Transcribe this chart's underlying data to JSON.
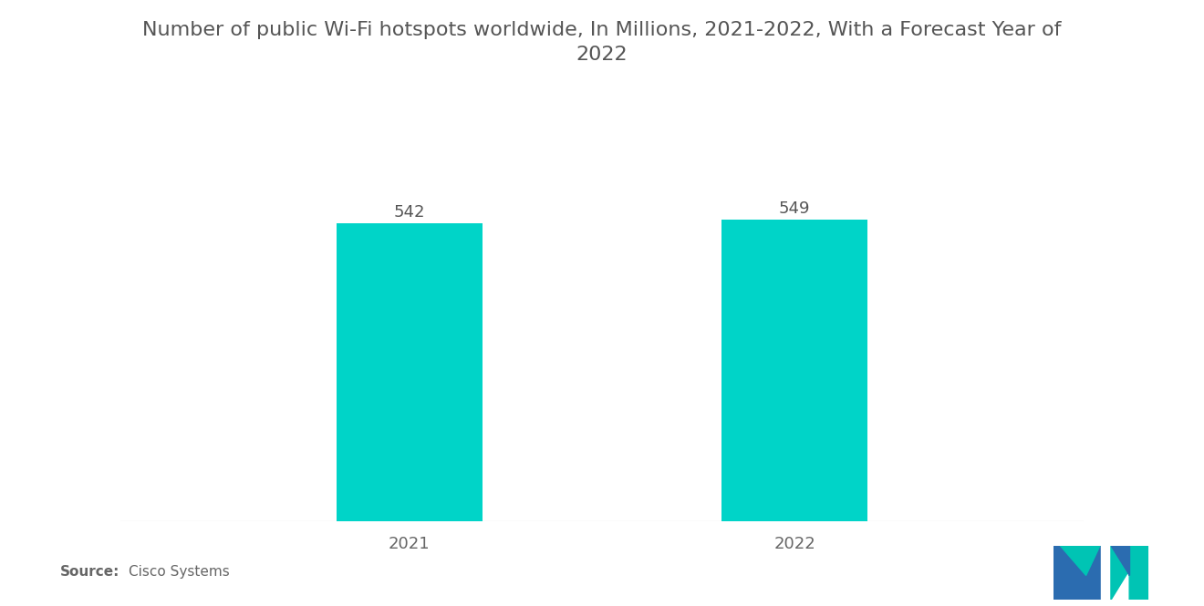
{
  "title_line1": "Number of public Wi-Fi hotspots worldwide, In Millions, 2021-2022, With a Forecast Year of",
  "title_line2": "2022",
  "categories": [
    "2021",
    "2022"
  ],
  "values": [
    542,
    549
  ],
  "bar_color": "#00D4C8",
  "bar_width": 0.38,
  "value_color": "#555555",
  "label_color": "#666666",
  "title_color": "#555555",
  "background_color": "#ffffff",
  "source_bold": "Source:",
  "source_normal": "  Cisco Systems",
  "value_fontsize": 13,
  "label_fontsize": 13,
  "title_fontsize": 16,
  "source_fontsize": 11,
  "ylim": [
    0,
    640
  ],
  "logo_blue": "#2B6CB0",
  "logo_teal": "#00C4B4"
}
